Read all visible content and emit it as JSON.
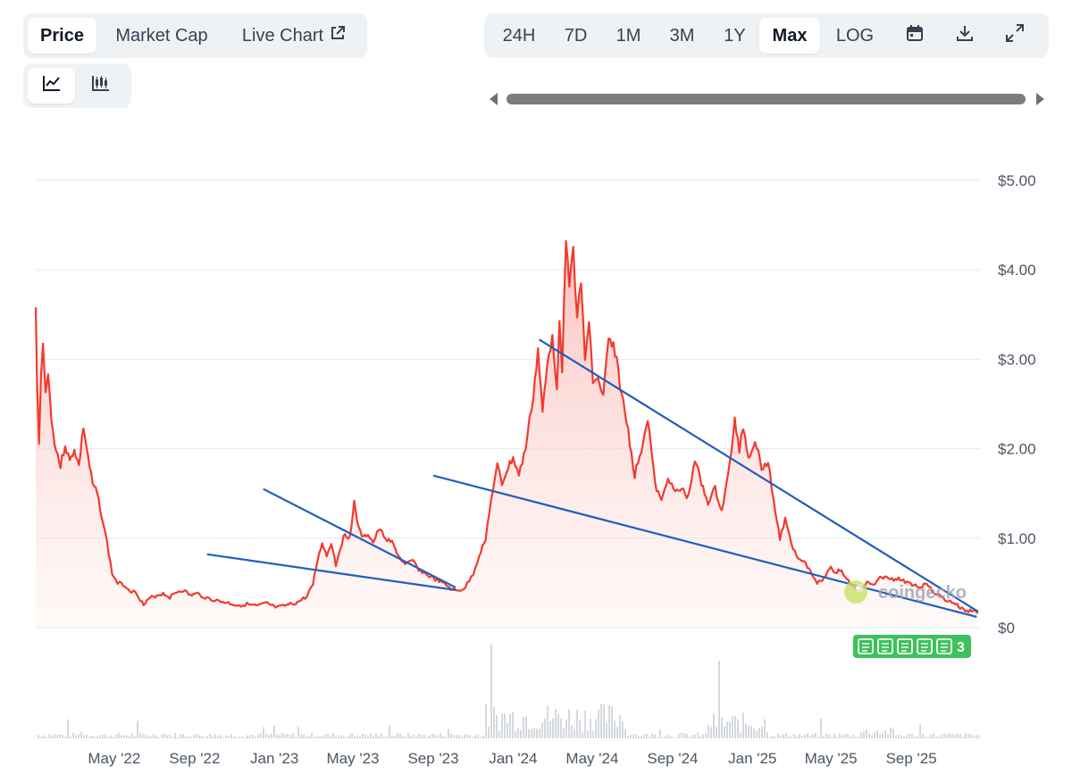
{
  "tabs": [
    {
      "label": "Price",
      "active": true
    },
    {
      "label": "Market Cap",
      "active": false
    },
    {
      "label": "Live Chart",
      "active": false,
      "icon": "external-link-icon"
    }
  ],
  "chart_style_buttons": [
    {
      "icon": "line-chart-icon",
      "active": true
    },
    {
      "icon": "candlestick-chart-icon",
      "active": false
    }
  ],
  "ranges": [
    {
      "label": "24H",
      "active": false
    },
    {
      "label": "7D",
      "active": false
    },
    {
      "label": "1M",
      "active": false
    },
    {
      "label": "3M",
      "active": false
    },
    {
      "label": "1Y",
      "active": false
    },
    {
      "label": "Max",
      "active": true
    },
    {
      "label": "LOG",
      "active": false
    }
  ],
  "toolbar_icons": [
    "calendar-icon",
    "download-icon",
    "fullscreen-icon"
  ],
  "watermark": "coingecko",
  "news_badge": {
    "count": "3",
    "icons": 5
  },
  "colors": {
    "price_line": "#f23a2f",
    "area_fill": "#fde4e2",
    "trendline": "#1f5fbf",
    "badge": "#3cc25a",
    "volume": "#d5d9de"
  },
  "chart_data": {
    "type": "area",
    "title": "",
    "xlabel": "",
    "ylabel": "",
    "ylim": [
      0,
      5
    ],
    "xlim": [
      "2022-01-01",
      "2025-12-15"
    ],
    "y_ticks": [
      "$0",
      "$1.00",
      "$2.00",
      "$3.00",
      "$4.00",
      "$5.00"
    ],
    "y_tick_values": [
      0,
      1,
      2,
      3,
      4,
      5
    ],
    "x_ticks": [
      "May '22",
      "Sep '22",
      "Jan '23",
      "May '23",
      "Sep '23",
      "Jan '24",
      "May '24",
      "Sep '24",
      "Jan '25",
      "May '25",
      "Sep '25"
    ],
    "x_tick_dates": [
      "2022-05-01",
      "2022-09-01",
      "2023-01-01",
      "2023-05-01",
      "2023-09-01",
      "2024-01-01",
      "2024-05-01",
      "2024-09-01",
      "2025-01-01",
      "2025-05-01",
      "2025-09-01"
    ],
    "grid": true,
    "series": [
      {
        "name": "",
        "points": [
          [
            "2022-01-01",
            3.55
          ],
          [
            "2022-01-03",
            2.7
          ],
          [
            "2022-01-06",
            2.1
          ],
          [
            "2022-01-09",
            2.8
          ],
          [
            "2022-01-12",
            3.2
          ],
          [
            "2022-01-16",
            2.6
          ],
          [
            "2022-01-20",
            2.9
          ],
          [
            "2022-01-25",
            2.3
          ],
          [
            "2022-02-01",
            2.0
          ],
          [
            "2022-02-08",
            1.8
          ],
          [
            "2022-02-15",
            2.05
          ],
          [
            "2022-02-22",
            1.85
          ],
          [
            "2022-03-01",
            2.0
          ],
          [
            "2022-03-08",
            1.8
          ],
          [
            "2022-03-15",
            2.25
          ],
          [
            "2022-03-22",
            1.9
          ],
          [
            "2022-03-29",
            1.6
          ],
          [
            "2022-04-05",
            1.5
          ],
          [
            "2022-04-12",
            1.25
          ],
          [
            "2022-04-20",
            0.95
          ],
          [
            "2022-04-28",
            0.6
          ],
          [
            "2022-05-06",
            0.5
          ],
          [
            "2022-05-15",
            0.48
          ],
          [
            "2022-05-25",
            0.42
          ],
          [
            "2022-06-05",
            0.38
          ],
          [
            "2022-06-15",
            0.25
          ],
          [
            "2022-06-25",
            0.33
          ],
          [
            "2022-07-05",
            0.36
          ],
          [
            "2022-07-15",
            0.38
          ],
          [
            "2022-07-25",
            0.34
          ],
          [
            "2022-08-05",
            0.4
          ],
          [
            "2022-08-15",
            0.42
          ],
          [
            "2022-08-25",
            0.36
          ],
          [
            "2022-09-05",
            0.38
          ],
          [
            "2022-09-20",
            0.33
          ],
          [
            "2022-10-05",
            0.3
          ],
          [
            "2022-10-20",
            0.28
          ],
          [
            "2022-11-05",
            0.25
          ],
          [
            "2022-11-20",
            0.26
          ],
          [
            "2022-12-05",
            0.24
          ],
          [
            "2022-12-20",
            0.27
          ],
          [
            "2023-01-05",
            0.22
          ],
          [
            "2023-01-20",
            0.25
          ],
          [
            "2023-02-05",
            0.28
          ],
          [
            "2023-02-20",
            0.35
          ],
          [
            "2023-03-01",
            0.5
          ],
          [
            "2023-03-08",
            0.75
          ],
          [
            "2023-03-15",
            0.95
          ],
          [
            "2023-03-22",
            0.8
          ],
          [
            "2023-03-29",
            0.95
          ],
          [
            "2023-04-05",
            0.7
          ],
          [
            "2023-04-12",
            0.9
          ],
          [
            "2023-04-19",
            1.05
          ],
          [
            "2023-04-26",
            1.0
          ],
          [
            "2023-05-03",
            1.4
          ],
          [
            "2023-05-10",
            1.1
          ],
          [
            "2023-05-17",
            1.0
          ],
          [
            "2023-05-24",
            1.05
          ],
          [
            "2023-06-01",
            0.95
          ],
          [
            "2023-06-10",
            1.1
          ],
          [
            "2023-06-20",
            1.0
          ],
          [
            "2023-06-30",
            0.95
          ],
          [
            "2023-07-10",
            0.8
          ],
          [
            "2023-07-20",
            0.7
          ],
          [
            "2023-08-01",
            0.75
          ],
          [
            "2023-08-10",
            0.65
          ],
          [
            "2023-08-20",
            0.6
          ],
          [
            "2023-09-01",
            0.55
          ],
          [
            "2023-09-10",
            0.52
          ],
          [
            "2023-09-20",
            0.48
          ],
          [
            "2023-10-01",
            0.42
          ],
          [
            "2023-10-10",
            0.41
          ],
          [
            "2023-10-20",
            0.45
          ],
          [
            "2023-11-01",
            0.6
          ],
          [
            "2023-11-10",
            0.8
          ],
          [
            "2023-11-20",
            1.0
          ],
          [
            "2023-12-01",
            1.55
          ],
          [
            "2023-12-08",
            1.8
          ],
          [
            "2023-12-15",
            1.6
          ],
          [
            "2023-12-22",
            1.75
          ],
          [
            "2024-01-01",
            1.9
          ],
          [
            "2024-01-10",
            1.7
          ],
          [
            "2024-01-20",
            2.0
          ],
          [
            "2024-02-01",
            2.6
          ],
          [
            "2024-02-08",
            3.1
          ],
          [
            "2024-02-15",
            2.4
          ],
          [
            "2024-02-22",
            2.9
          ],
          [
            "2024-03-01",
            3.3
          ],
          [
            "2024-03-08",
            2.7
          ],
          [
            "2024-03-12",
            3.5
          ],
          [
            "2024-03-16",
            2.8
          ],
          [
            "2024-03-22",
            4.42
          ],
          [
            "2024-03-27",
            3.9
          ],
          [
            "2024-04-02",
            4.2
          ],
          [
            "2024-04-08",
            3.5
          ],
          [
            "2024-04-14",
            3.8
          ],
          [
            "2024-04-20",
            3.0
          ],
          [
            "2024-04-26",
            3.4
          ],
          [
            "2024-05-02",
            2.8
          ],
          [
            "2024-05-10",
            2.75
          ],
          [
            "2024-05-18",
            2.6
          ],
          [
            "2024-05-26",
            3.2
          ],
          [
            "2024-06-05",
            3.1
          ],
          [
            "2024-06-15",
            2.6
          ],
          [
            "2024-06-25",
            2.2
          ],
          [
            "2024-07-05",
            1.7
          ],
          [
            "2024-07-15",
            2.0
          ],
          [
            "2024-07-25",
            2.35
          ],
          [
            "2024-08-05",
            1.6
          ],
          [
            "2024-08-15",
            1.4
          ],
          [
            "2024-08-25",
            1.7
          ],
          [
            "2024-09-05",
            1.5
          ],
          [
            "2024-09-15",
            1.55
          ],
          [
            "2024-09-25",
            1.45
          ],
          [
            "2024-10-05",
            1.9
          ],
          [
            "2024-10-15",
            1.6
          ],
          [
            "2024-10-25",
            1.4
          ],
          [
            "2024-11-05",
            1.55
          ],
          [
            "2024-11-15",
            1.3
          ],
          [
            "2024-11-25",
            1.7
          ],
          [
            "2024-12-05",
            2.3
          ],
          [
            "2024-12-12",
            2.0
          ],
          [
            "2024-12-18",
            2.25
          ],
          [
            "2024-12-26",
            1.9
          ],
          [
            "2025-01-05",
            2.1
          ],
          [
            "2025-01-15",
            1.8
          ],
          [
            "2025-01-25",
            1.85
          ],
          [
            "2025-02-05",
            1.3
          ],
          [
            "2025-02-12",
            1.0
          ],
          [
            "2025-02-20",
            1.2
          ],
          [
            "2025-03-01",
            0.95
          ],
          [
            "2025-03-10",
            0.8
          ],
          [
            "2025-03-20",
            0.75
          ],
          [
            "2025-04-01",
            0.62
          ],
          [
            "2025-04-10",
            0.5
          ],
          [
            "2025-04-20",
            0.55
          ],
          [
            "2025-05-01",
            0.7
          ],
          [
            "2025-05-08",
            0.6
          ],
          [
            "2025-05-15",
            0.65
          ],
          [
            "2025-05-25",
            0.55
          ],
          [
            "2025-06-05",
            0.45
          ],
          [
            "2025-06-15",
            0.42
          ],
          [
            "2025-06-25",
            0.5
          ],
          [
            "2025-07-05",
            0.48
          ],
          [
            "2025-07-15",
            0.55
          ],
          [
            "2025-07-25",
            0.58
          ],
          [
            "2025-08-05",
            0.52
          ],
          [
            "2025-08-15",
            0.55
          ],
          [
            "2025-08-25",
            0.5
          ],
          [
            "2025-09-05",
            0.48
          ],
          [
            "2025-09-15",
            0.45
          ],
          [
            "2025-09-25",
            0.5
          ],
          [
            "2025-10-05",
            0.4
          ],
          [
            "2025-10-15",
            0.35
          ],
          [
            "2025-10-25",
            0.3
          ],
          [
            "2025-11-05",
            0.28
          ],
          [
            "2025-11-15",
            0.22
          ],
          [
            "2025-11-25",
            0.18
          ],
          [
            "2025-12-05",
            0.2
          ],
          [
            "2025-12-12",
            0.16
          ]
        ]
      }
    ],
    "trendlines": [
      {
        "from": [
          "2022-09-20",
          0.82
        ],
        "to": [
          "2023-10-05",
          0.42
        ]
      },
      {
        "from": [
          "2022-12-15",
          1.55
        ],
        "to": [
          "2023-10-05",
          0.45
        ]
      },
      {
        "from": [
          "2023-09-01",
          1.7
        ],
        "to": [
          "2025-12-10",
          0.12
        ]
      },
      {
        "from": [
          "2024-02-10",
          3.22
        ],
        "to": [
          "2025-12-12",
          0.18
        ]
      }
    ]
  }
}
